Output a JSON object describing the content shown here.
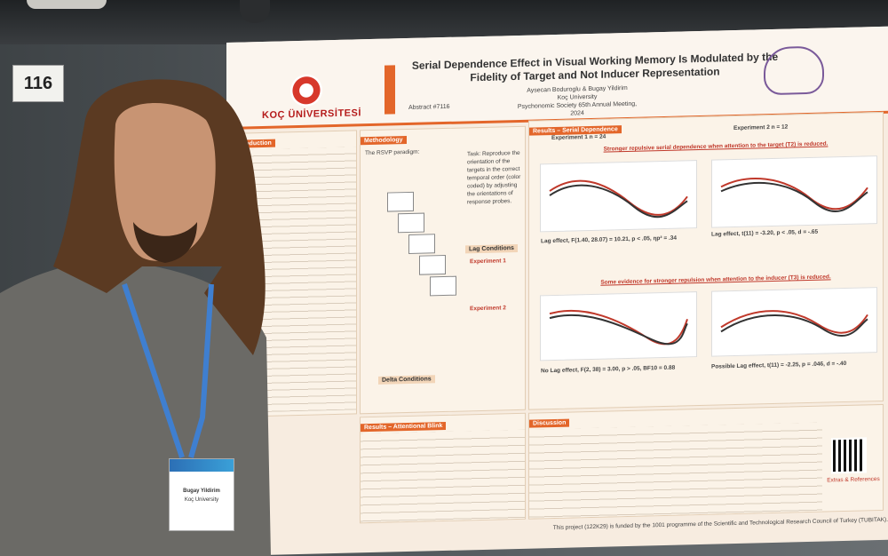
{
  "board_number": "116",
  "poster": {
    "university": "KOÇ ÜNİVERSİTESİ",
    "title": "Serial Dependence Effect in Visual Working Memory Is Modulated by the Fidelity of Target and Not Inducer Representation",
    "authors": "Aysecan Boduroglu & Bugay Yildirim",
    "affiliation": "Koç University",
    "conference": "Psychonomic Society 65th Annual Meeting, 2024",
    "abstract": "Abstract #7116",
    "sections": {
      "introduction": "Introduction",
      "methodology": "Methodology",
      "rsvp": "The RSVP paradigm:",
      "task": "Task: Reproduce the orientation of the targets in the correct temporal order (color coded) by adjusting the orientations of response probes.",
      "lag_conditions": "Lag Conditions",
      "exp1": "Experiment 1",
      "exp2": "Experiment 2",
      "delta": "Delta Conditions",
      "results_sd": "Results – Serial Dependence",
      "exp1_n": "Experiment 1    n = 24",
      "exp2_n": "Experiment 2    n = 12",
      "finding1": "Stronger repulsive serial dependence when attention to the target (T2) is reduced.",
      "finding2": "Some evidence for stronger repulsion when attention to the inducer (T3) is reduced.",
      "lag_effect_1": "Lag effect, F(1.40, 28.07) = 10.21, p < .05, ηp² = .34",
      "lag_effect_2": "Lag effect, t(11) = -3.20, p < .05, d = -.65",
      "no_lag_effect": "No Lag effect, F(2, 38) = 3.00, p > .05, BF10 = 0.88",
      "possible_lag": "Possible Lag effect, t(11) = -2.25, p = .046, d = -.40",
      "results_ab": "Results – Attentional Blink",
      "discussion": "Discussion",
      "funding": "This project (122K29) is funded by the 1001 programme of the Scientific and Technological Research Council of Turkey (TUBITAK).",
      "extras": "Extras & References"
    }
  },
  "badge": {
    "name": "Bugay Yildirim",
    "affiliation": "Koç University"
  }
}
